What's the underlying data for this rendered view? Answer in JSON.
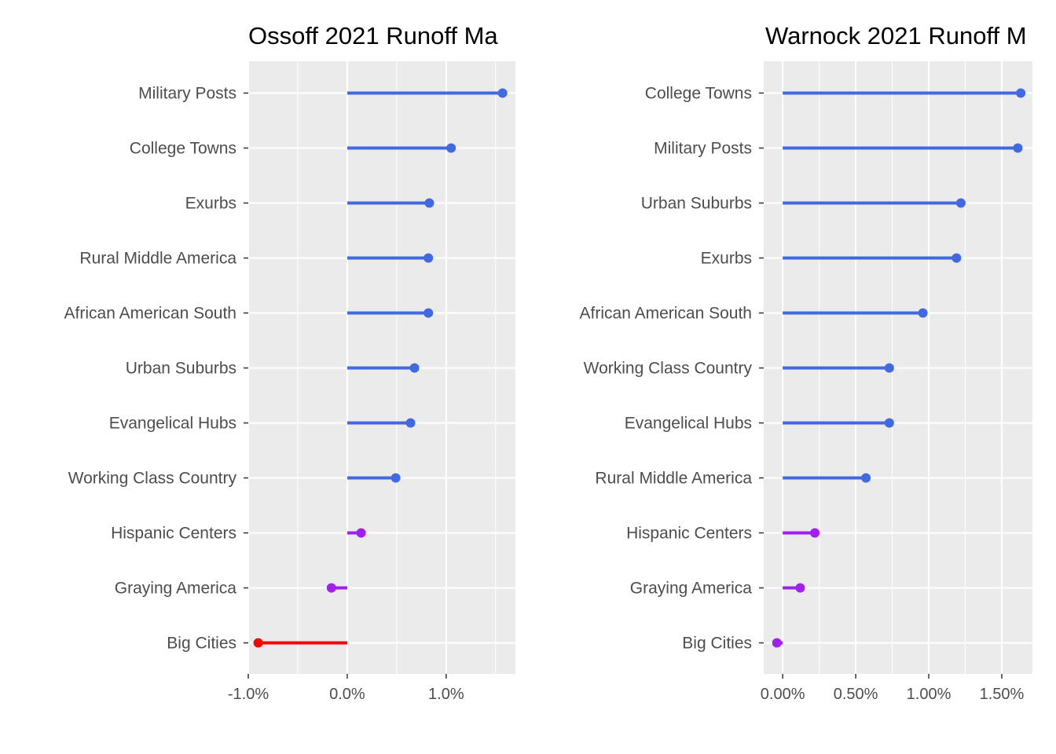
{
  "chart_data": [
    {
      "type": "lollipop",
      "title": "Ossoff 2021 Runoff Ma",
      "colors": {
        "positive": "#4169e1",
        "small": "#a020f0",
        "negative": "#ff0000",
        "panel": "#ebebeb",
        "grid": "#ffffff"
      },
      "xlim": [
        -1.0,
        1.7
      ],
      "xticks": [
        {
          "value": -1.0,
          "label": "-1.0%"
        },
        {
          "value": 0.0,
          "label": "0.0%"
        },
        {
          "value": 1.0,
          "label": "1.0%"
        }
      ],
      "categories": [
        "Military Posts",
        "College Towns",
        "Exurbs",
        "Rural Middle America",
        "African American South",
        "Urban Suburbs",
        "Evangelical Hubs",
        "Working Class Country",
        "Hispanic Centers",
        "Graying America",
        "Big Cities"
      ],
      "values": [
        1.57,
        1.05,
        0.83,
        0.82,
        0.82,
        0.68,
        0.64,
        0.49,
        0.14,
        -0.16,
        -0.9
      ],
      "colorKeys": [
        "positive",
        "positive",
        "positive",
        "positive",
        "positive",
        "positive",
        "positive",
        "positive",
        "small",
        "small",
        "negative"
      ]
    },
    {
      "type": "lollipop",
      "title": "Warnock 2021 Runoff M",
      "colors": {
        "positive": "#4169e1",
        "small": "#a020f0",
        "negative": "#ff0000",
        "panel": "#ebebeb",
        "grid": "#ffffff"
      },
      "xlim": [
        -0.13,
        1.71
      ],
      "xticks": [
        {
          "value": 0.0,
          "label": "0.00%"
        },
        {
          "value": 0.5,
          "label": "0.50%"
        },
        {
          "value": 1.0,
          "label": "1.00%"
        },
        {
          "value": 1.5,
          "label": "1.50%"
        }
      ],
      "categories": [
        "College Towns",
        "Military Posts",
        "Urban Suburbs",
        "Exurbs",
        "African American South",
        "Working Class Country",
        "Evangelical Hubs",
        "Rural Middle America",
        "Hispanic Centers",
        "Graying America",
        "Big Cities"
      ],
      "values": [
        1.63,
        1.61,
        1.22,
        1.19,
        0.96,
        0.73,
        0.73,
        0.57,
        0.22,
        0.12,
        -0.04
      ],
      "colorKeys": [
        "positive",
        "positive",
        "positive",
        "positive",
        "positive",
        "positive",
        "positive",
        "positive",
        "small",
        "small",
        "small"
      ]
    }
  ]
}
